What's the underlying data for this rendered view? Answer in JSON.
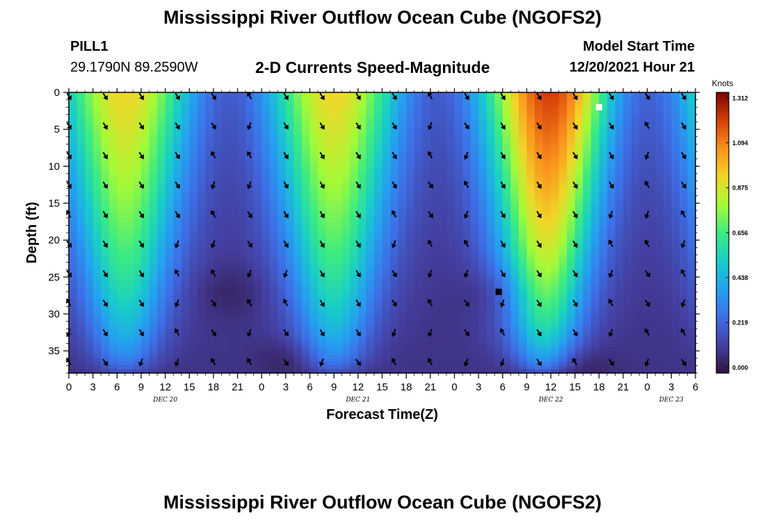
{
  "header": {
    "title": "Mississippi River Outflow Ocean Cube (NGOFS2)",
    "station": "PILL1",
    "coordinates": "29.1790N  89.2590W",
    "subtitle": "2-D Currents Speed-Magnitude",
    "model_start_label": "Model Start Time",
    "model_start_value": "12/20/2021 Hour 21"
  },
  "footer": {
    "title": "Mississippi River Outflow Ocean Cube (NGOFS2)"
  },
  "chart_data": {
    "type": "heatmap",
    "xlabel": "Forecast Time(Z)",
    "ylabel": "Depth (ft)",
    "x_ticks": [
      "0",
      "3",
      "6",
      "9",
      "12",
      "15",
      "18",
      "21",
      "0",
      "3",
      "6",
      "9",
      "12",
      "15",
      "18",
      "21",
      "0",
      "3",
      "6",
      "9",
      "12",
      "15",
      "18",
      "21",
      "0",
      "3",
      "6"
    ],
    "date_labels": [
      {
        "label": "DEC 20",
        "hours_from_start": 12
      },
      {
        "label": "DEC 21",
        "hours_from_start": 36
      },
      {
        "label": "DEC 22",
        "hours_from_start": 60
      },
      {
        "label": "DEC 23",
        "hours_from_start": 75
      }
    ],
    "xlim_hours": [
      0,
      78
    ],
    "y_ticks": [
      0,
      5,
      10,
      15,
      20,
      25,
      30,
      35
    ],
    "ylim": [
      0,
      38
    ],
    "y_inverted": true,
    "colorbar": {
      "title": "Knots",
      "ticks": [
        "1.312",
        "1.094",
        "0.875",
        "0.656",
        "0.438",
        "0.219",
        "0.000"
      ],
      "range": [
        0.0,
        1.312
      ]
    },
    "markers": [
      {
        "type": "max",
        "color": "#ffffff",
        "hours_from_start": 66,
        "depth_ft": 2
      },
      {
        "type": "min",
        "color": "#000000",
        "hours_from_start": 53.5,
        "depth_ft": 27
      }
    ],
    "vector_columns_hours": [
      0,
      4.5,
      9,
      13.5,
      18,
      22.5,
      27,
      31.5,
      36,
      40.5,
      45,
      49.5,
      54,
      58.5,
      63,
      67.5,
      72,
      76.5
    ],
    "vector_rows_depth_ft": [
      0.5,
      4.5,
      8.5,
      12.5,
      16.5,
      20.5,
      24.5,
      28.5,
      32.5,
      36.5
    ],
    "speed_model_note_free": true
  }
}
